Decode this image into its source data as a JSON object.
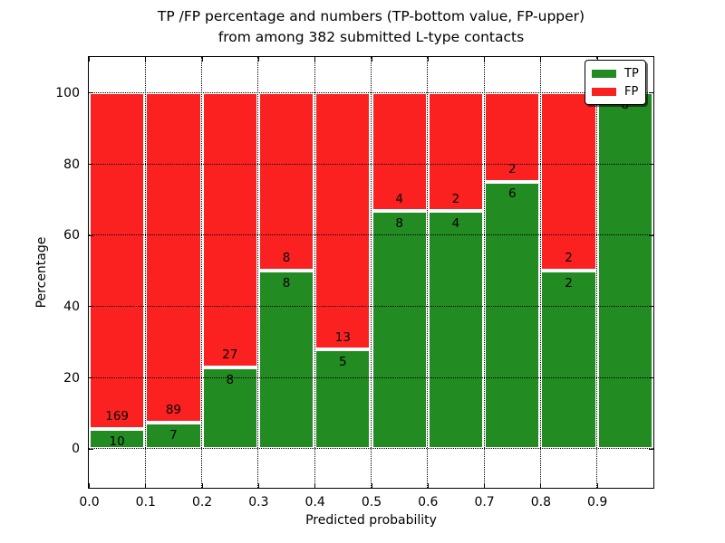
{
  "figure": {
    "title_line1": "TP /FP percentage and numbers (TP-bottom value, FP-upper)",
    "title_line2": "from among 382 submitted L-type contacts"
  },
  "chart_data": {
    "type": "bar",
    "subtype": "stacked-percentage",
    "title": "TP /FP percentage and numbers (TP-bottom value, FP-upper)\nfrom among 382 submitted L-type contacts",
    "xlabel": "Predicted probability",
    "ylabel": "Percentage",
    "total_contacts": 382,
    "bins": [
      0.0,
      0.1,
      0.2,
      0.3,
      0.4,
      0.5,
      0.6,
      0.7,
      0.8,
      0.9
    ],
    "bin_width": 0.1,
    "series": [
      {
        "name": "TP",
        "color": "#228b22",
        "values": [
          10,
          7,
          8,
          8,
          5,
          8,
          4,
          6,
          2,
          8
        ]
      },
      {
        "name": "FP",
        "color": "#fb2121",
        "values": [
          169,
          89,
          27,
          8,
          13,
          4,
          2,
          2,
          2,
          0
        ]
      }
    ],
    "tp_percent": [
      5.59,
      7.29,
      22.86,
      50.0,
      27.78,
      66.67,
      66.67,
      75.0,
      50.0,
      100.0
    ],
    "xtick_labels": [
      "0.0",
      "0.1",
      "0.2",
      "0.3",
      "0.4",
      "0.5",
      "0.6",
      "0.7",
      "0.8",
      "0.9"
    ],
    "xtick_values": [
      0.0,
      0.1,
      0.2,
      0.3,
      0.4,
      0.5,
      0.6,
      0.7,
      0.8,
      0.9
    ],
    "ytick_labels": [
      "0",
      "20",
      "40",
      "60",
      "80",
      "100"
    ],
    "ytick_values": [
      0,
      20,
      40,
      60,
      80,
      100
    ],
    "xlim": [
      0,
      1
    ],
    "ylim": [
      -11,
      110
    ],
    "grid": true,
    "grid_style": "dotted",
    "bar_edge_color": "#ffffff",
    "legend": {
      "position": "upper right",
      "entries": [
        {
          "label": "TP",
          "color": "#228b22"
        },
        {
          "label": "FP",
          "color": "#fb2121"
        }
      ]
    }
  }
}
